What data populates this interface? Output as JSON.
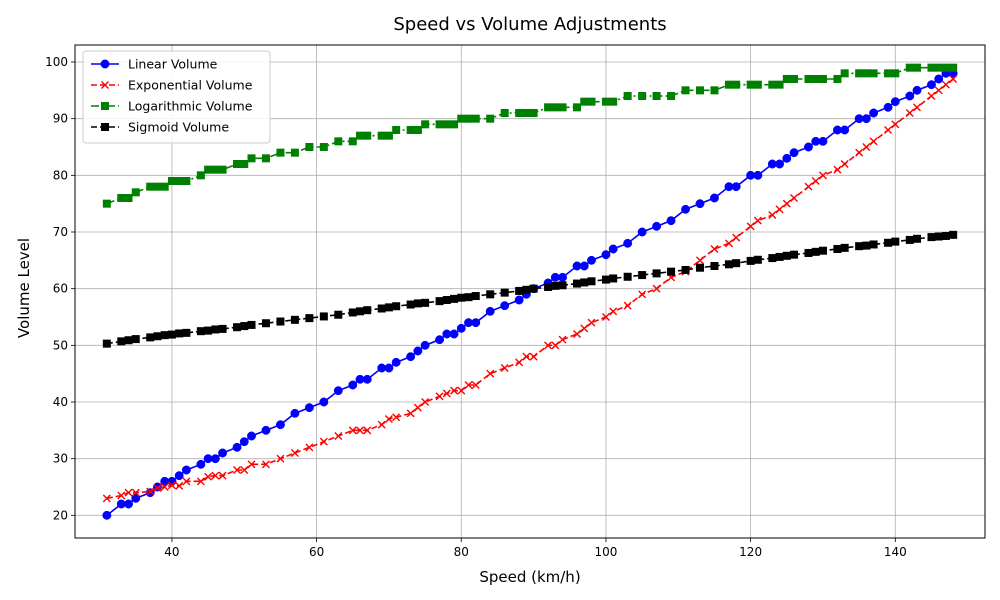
{
  "chart_data": {
    "type": "line",
    "title": "Speed vs Volume Adjustments",
    "xlabel": "Speed (km/h)",
    "ylabel": "Volume Level",
    "xlim": [
      26.6,
      152.4
    ],
    "ylim": [
      16,
      103
    ],
    "xticks": [
      40,
      60,
      80,
      100,
      120,
      140
    ],
    "yticks": [
      20,
      30,
      40,
      50,
      60,
      70,
      80,
      90,
      100
    ],
    "grid": true,
    "legend_position": "top-left",
    "x": [
      31,
      33,
      34,
      35,
      37,
      38,
      39,
      40,
      41,
      42,
      44,
      45,
      46,
      47,
      49,
      50,
      51,
      53,
      55,
      57,
      59,
      61,
      63,
      65,
      66,
      67,
      69,
      70,
      71,
      73,
      74,
      75,
      77,
      78,
      79,
      80,
      81,
      82,
      84,
      86,
      88,
      89,
      90,
      92,
      93,
      94,
      96,
      97,
      98,
      100,
      101,
      103,
      105,
      107,
      109,
      111,
      113,
      115,
      117,
      118,
      120,
      121,
      123,
      124,
      125,
      126,
      128,
      129,
      130,
      132,
      133,
      135,
      136,
      137,
      139,
      140,
      142,
      143,
      145,
      146,
      147,
      148
    ],
    "series": [
      {
        "name": "Linear Volume",
        "color": "#0000ff",
        "marker": "circle",
        "linestyle": "solid",
        "values": [
          20,
          22,
          22,
          23,
          24,
          25,
          26,
          26,
          27,
          28,
          29,
          30,
          30,
          31,
          32,
          33,
          34,
          35,
          36,
          38,
          39,
          40,
          42,
          43,
          44,
          44,
          46,
          46,
          47,
          48,
          49,
          50,
          51,
          52,
          52,
          53,
          54,
          54,
          56,
          57,
          58,
          59,
          60,
          61,
          62,
          62,
          64,
          64,
          65,
          66,
          67,
          68,
          70,
          71,
          72,
          74,
          75,
          76,
          78,
          78,
          80,
          80,
          82,
          82,
          83,
          84,
          85,
          86,
          86,
          88,
          88,
          90,
          90,
          91,
          92,
          93,
          94,
          95,
          96,
          97,
          98,
          98
        ]
      },
      {
        "name": "Exponential Volume",
        "color": "#ff0000",
        "marker": "x",
        "linestyle": "dashed",
        "values": [
          23,
          23.5,
          24,
          24,
          24.2,
          24.8,
          25,
          25.3,
          25.2,
          26,
          26,
          26.8,
          27,
          27,
          28,
          28,
          29,
          29,
          30,
          31,
          32,
          33,
          34,
          35,
          35,
          35,
          36,
          37,
          37.3,
          38,
          39,
          40,
          41,
          41.5,
          42,
          42,
          43,
          43,
          45,
          46,
          47,
          48,
          48,
          50,
          50,
          51,
          52,
          53,
          54,
          55,
          56,
          57,
          59,
          60,
          62,
          63,
          65,
          67,
          68,
          69,
          71,
          72,
          73,
          74,
          75,
          76,
          78,
          79,
          80,
          81,
          82,
          84,
          85,
          86,
          88,
          89,
          91,
          92,
          94,
          95,
          96,
          97
        ]
      },
      {
        "name": "Logarithmic Volume",
        "color": "#008000",
        "marker": "square",
        "linestyle": "dashdot",
        "values": [
          75,
          76,
          76,
          77,
          78,
          78,
          78,
          79,
          79,
          79,
          80,
          81,
          81,
          81,
          82,
          82,
          83,
          83,
          84,
          84,
          85,
          85,
          86,
          86,
          87,
          87,
          87,
          87,
          88,
          88,
          88,
          89,
          89,
          89,
          89,
          90,
          90,
          90,
          90,
          91,
          91,
          91,
          91,
          92,
          92,
          92,
          92,
          93,
          93,
          93,
          93,
          94,
          94,
          94,
          94,
          95,
          95,
          95,
          96,
          96,
          96,
          96,
          96,
          96,
          97,
          97,
          97,
          97,
          97,
          97,
          98,
          98,
          98,
          98,
          98,
          98,
          99,
          99,
          99,
          99,
          99,
          99
        ]
      },
      {
        "name": "Sigmoid Volume",
        "color": "#000000",
        "marker": "square",
        "linestyle": "dashed",
        "values": [
          50.3,
          50.7,
          50.9,
          51.1,
          51.4,
          51.6,
          51.8,
          51.9,
          52.1,
          52.2,
          52.5,
          52.6,
          52.8,
          52.9,
          53.2,
          53.4,
          53.6,
          53.9,
          54.2,
          54.5,
          54.8,
          55.1,
          55.4,
          55.8,
          56,
          56.2,
          56.5,
          56.7,
          56.9,
          57.2,
          57.4,
          57.5,
          57.8,
          58,
          58.2,
          58.4,
          58.5,
          58.7,
          59,
          59.3,
          59.6,
          59.8,
          60,
          60.3,
          60.5,
          60.6,
          60.9,
          61.1,
          61.3,
          61.6,
          61.8,
          62.1,
          62.4,
          62.7,
          63,
          63.3,
          63.7,
          64,
          64.3,
          64.5,
          64.9,
          65.1,
          65.4,
          65.6,
          65.8,
          66,
          66.3,
          66.5,
          66.7,
          67,
          67.2,
          67.5,
          67.6,
          67.8,
          68.1,
          68.3,
          68.6,
          68.8,
          69.1,
          69.2,
          69.3,
          69.5
        ]
      }
    ]
  }
}
